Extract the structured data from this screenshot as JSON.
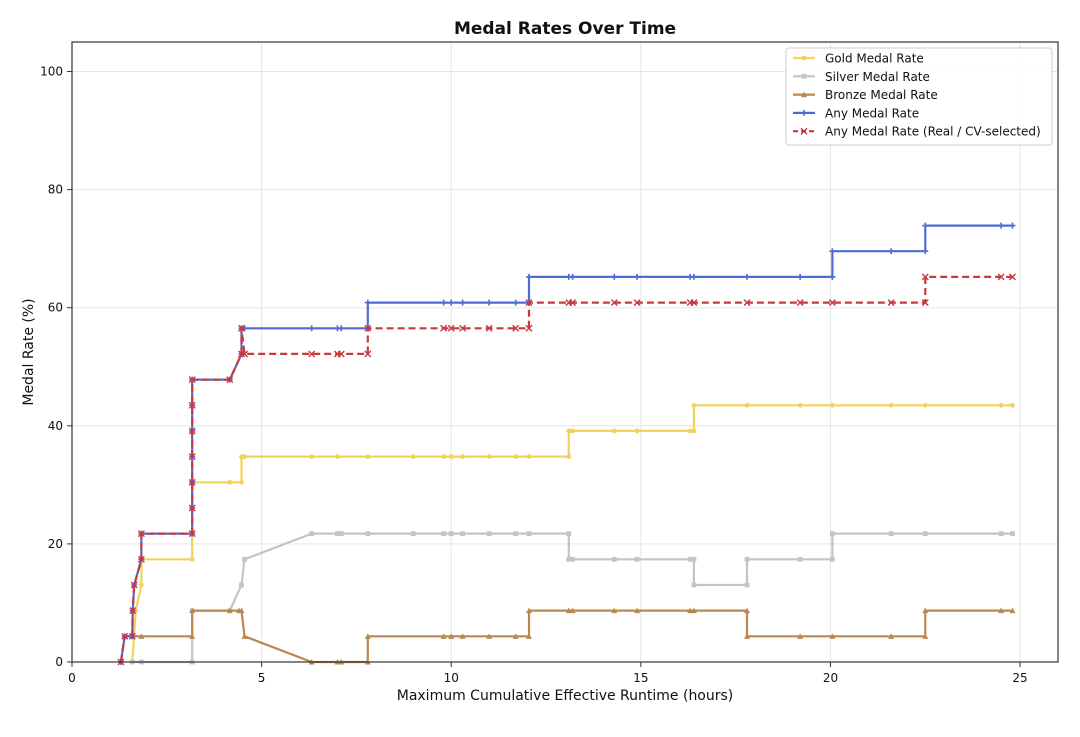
{
  "chart_data": {
    "type": "line",
    "title": "Medal Rates Over Time",
    "xlabel": "Maximum Cumulative Effective Runtime (hours)",
    "ylabel": "Medal Rate (%)",
    "xlim": [
      0,
      26
    ],
    "ylim": [
      0,
      105
    ],
    "xticks": [
      0,
      5,
      10,
      15,
      20,
      25
    ],
    "yticks": [
      0,
      20,
      40,
      60,
      80,
      100
    ],
    "grid": true,
    "legend_position": "top-right",
    "series": [
      {
        "name": "Gold Medal Rate",
        "color": "#f2d35a",
        "dash": false,
        "marker": "circle",
        "points": [
          [
            1.59,
            0
          ],
          [
            1.68,
            8.7
          ],
          [
            1.83,
            13.04
          ],
          [
            1.83,
            17.39
          ],
          [
            3.17,
            17.39
          ],
          [
            3.17,
            30.43
          ],
          [
            4.16,
            30.43
          ],
          [
            4.47,
            30.43
          ],
          [
            4.47,
            34.78
          ],
          [
            4.55,
            34.78
          ],
          [
            6.32,
            34.78
          ],
          [
            7.0,
            34.78
          ],
          [
            7.8,
            34.78
          ],
          [
            9.0,
            34.78
          ],
          [
            9.8,
            34.78
          ],
          [
            10.0,
            34.78
          ],
          [
            10.3,
            34.78
          ],
          [
            11.0,
            34.78
          ],
          [
            11.7,
            34.78
          ],
          [
            12.05,
            34.78
          ],
          [
            13.1,
            34.78
          ],
          [
            13.1,
            39.13
          ],
          [
            13.2,
            39.13
          ],
          [
            14.3,
            39.13
          ],
          [
            14.9,
            39.13
          ],
          [
            16.3,
            39.13
          ],
          [
            16.4,
            39.13
          ],
          [
            16.4,
            43.48
          ],
          [
            17.8,
            43.48
          ],
          [
            19.2,
            43.48
          ],
          [
            20.05,
            43.48
          ],
          [
            21.6,
            43.48
          ],
          [
            22.5,
            43.48
          ],
          [
            24.5,
            43.48
          ],
          [
            24.8,
            43.48
          ]
        ]
      },
      {
        "name": "Silver Medal Rate",
        "color": "#c4c4c4",
        "dash": false,
        "marker": "square",
        "points": [
          [
            1.59,
            0
          ],
          [
            1.83,
            0
          ],
          [
            3.17,
            0
          ],
          [
            3.17,
            8.7
          ],
          [
            4.16,
            8.7
          ],
          [
            4.47,
            13.04
          ],
          [
            4.55,
            17.39
          ],
          [
            6.32,
            21.74
          ],
          [
            7.0,
            21.74
          ],
          [
            7.1,
            21.74
          ],
          [
            7.8,
            21.74
          ],
          [
            9.0,
            21.74
          ],
          [
            9.8,
            21.74
          ],
          [
            10.0,
            21.74
          ],
          [
            10.3,
            21.74
          ],
          [
            11.0,
            21.74
          ],
          [
            11.7,
            21.74
          ],
          [
            12.05,
            21.74
          ],
          [
            13.1,
            21.74
          ],
          [
            13.1,
            17.39
          ],
          [
            13.2,
            17.39
          ],
          [
            14.3,
            17.39
          ],
          [
            14.9,
            17.39
          ],
          [
            16.3,
            17.39
          ],
          [
            16.4,
            17.39
          ],
          [
            16.4,
            13.04
          ],
          [
            17.8,
            13.04
          ],
          [
            17.8,
            17.39
          ],
          [
            19.2,
            17.39
          ],
          [
            20.05,
            17.39
          ],
          [
            20.05,
            21.74
          ],
          [
            21.6,
            21.74
          ],
          [
            22.5,
            21.74
          ],
          [
            24.5,
            21.74
          ],
          [
            24.8,
            21.74
          ]
        ]
      },
      {
        "name": "Bronze Medal Rate",
        "color": "#b8884e",
        "dash": false,
        "marker": "triangle",
        "points": [
          [
            1.39,
            4.35
          ],
          [
            1.59,
            4.35
          ],
          [
            1.83,
            4.35
          ],
          [
            3.17,
            4.35
          ],
          [
            3.17,
            8.7
          ],
          [
            4.16,
            8.7
          ],
          [
            4.4,
            8.7
          ],
          [
            4.47,
            8.7
          ],
          [
            4.55,
            4.35
          ],
          [
            6.32,
            0
          ],
          [
            7.0,
            0
          ],
          [
            7.1,
            0
          ],
          [
            7.8,
            0
          ],
          [
            7.8,
            4.35
          ],
          [
            9.8,
            4.35
          ],
          [
            10.0,
            4.35
          ],
          [
            10.3,
            4.35
          ],
          [
            11.0,
            4.35
          ],
          [
            11.7,
            4.35
          ],
          [
            12.05,
            4.35
          ],
          [
            12.05,
            8.7
          ],
          [
            13.1,
            8.7
          ],
          [
            13.2,
            8.7
          ],
          [
            14.3,
            8.7
          ],
          [
            14.9,
            8.7
          ],
          [
            16.3,
            8.7
          ],
          [
            16.4,
            8.7
          ],
          [
            17.8,
            8.7
          ],
          [
            17.8,
            4.35
          ],
          [
            19.2,
            4.35
          ],
          [
            20.05,
            4.35
          ],
          [
            21.6,
            4.35
          ],
          [
            22.5,
            4.35
          ],
          [
            22.5,
            8.7
          ],
          [
            24.5,
            8.7
          ],
          [
            24.8,
            8.7
          ]
        ]
      },
      {
        "name": "Any Medal Rate",
        "color": "#4f6bd8",
        "dash": false,
        "marker": "plus",
        "points": [
          [
            1.29,
            0
          ],
          [
            1.39,
            4.35
          ],
          [
            1.59,
            4.35
          ],
          [
            1.6,
            8.7
          ],
          [
            1.64,
            13.04
          ],
          [
            1.83,
            17.39
          ],
          [
            1.83,
            21.74
          ],
          [
            3.17,
            21.74
          ],
          [
            3.17,
            26.09
          ],
          [
            3.17,
            30.43
          ],
          [
            3.17,
            34.78
          ],
          [
            3.17,
            39.13
          ],
          [
            3.17,
            43.48
          ],
          [
            3.17,
            47.83
          ],
          [
            4.16,
            47.83
          ],
          [
            4.47,
            52.17
          ],
          [
            4.47,
            56.52
          ],
          [
            4.55,
            56.52
          ],
          [
            6.32,
            56.52
          ],
          [
            7.0,
            56.52
          ],
          [
            7.1,
            56.52
          ],
          [
            7.8,
            56.52
          ],
          [
            7.8,
            60.87
          ],
          [
            9.8,
            60.87
          ],
          [
            10.0,
            60.87
          ],
          [
            10.3,
            60.87
          ],
          [
            11.0,
            60.87
          ],
          [
            11.7,
            60.87
          ],
          [
            12.05,
            60.87
          ],
          [
            12.05,
            65.22
          ],
          [
            13.1,
            65.22
          ],
          [
            13.2,
            65.22
          ],
          [
            14.3,
            65.22
          ],
          [
            14.9,
            65.22
          ],
          [
            16.3,
            65.22
          ],
          [
            16.4,
            65.22
          ],
          [
            17.8,
            65.22
          ],
          [
            19.2,
            65.22
          ],
          [
            20.05,
            65.22
          ],
          [
            20.05,
            69.57
          ],
          [
            21.6,
            69.57
          ],
          [
            22.5,
            69.57
          ],
          [
            22.5,
            73.91
          ],
          [
            24.5,
            73.91
          ],
          [
            24.8,
            73.91
          ]
        ]
      },
      {
        "name": "Any Medal Rate (Real / CV-selected)",
        "color": "#c8383e",
        "dash": true,
        "marker": "x",
        "points": [
          [
            1.29,
            0
          ],
          [
            1.39,
            4.35
          ],
          [
            1.59,
            4.35
          ],
          [
            1.6,
            8.7
          ],
          [
            1.64,
            13.04
          ],
          [
            1.83,
            17.39
          ],
          [
            1.83,
            21.74
          ],
          [
            3.17,
            21.74
          ],
          [
            3.17,
            26.09
          ],
          [
            3.17,
            30.43
          ],
          [
            3.17,
            34.78
          ],
          [
            3.17,
            39.13
          ],
          [
            3.17,
            43.48
          ],
          [
            3.17,
            47.83
          ],
          [
            4.16,
            47.83
          ],
          [
            4.47,
            52.17
          ],
          [
            4.47,
            56.52
          ],
          [
            4.55,
            52.17
          ],
          [
            6.32,
            52.17
          ],
          [
            7.0,
            52.17
          ],
          [
            7.1,
            52.17
          ],
          [
            7.8,
            52.17
          ],
          [
            7.8,
            56.52
          ],
          [
            9.8,
            56.52
          ],
          [
            10.0,
            56.52
          ],
          [
            10.3,
            56.52
          ],
          [
            11.0,
            56.52
          ],
          [
            11.7,
            56.52
          ],
          [
            12.05,
            56.52
          ],
          [
            12.05,
            60.87
          ],
          [
            13.1,
            60.87
          ],
          [
            13.2,
            60.87
          ],
          [
            14.3,
            60.87
          ],
          [
            14.9,
            60.87
          ],
          [
            16.3,
            60.87
          ],
          [
            16.4,
            60.87
          ],
          [
            17.8,
            60.87
          ],
          [
            19.2,
            60.87
          ],
          [
            20.05,
            60.87
          ],
          [
            21.6,
            60.87
          ],
          [
            22.5,
            60.87
          ],
          [
            22.5,
            65.22
          ],
          [
            24.5,
            65.22
          ],
          [
            24.8,
            65.22
          ]
        ]
      }
    ]
  }
}
